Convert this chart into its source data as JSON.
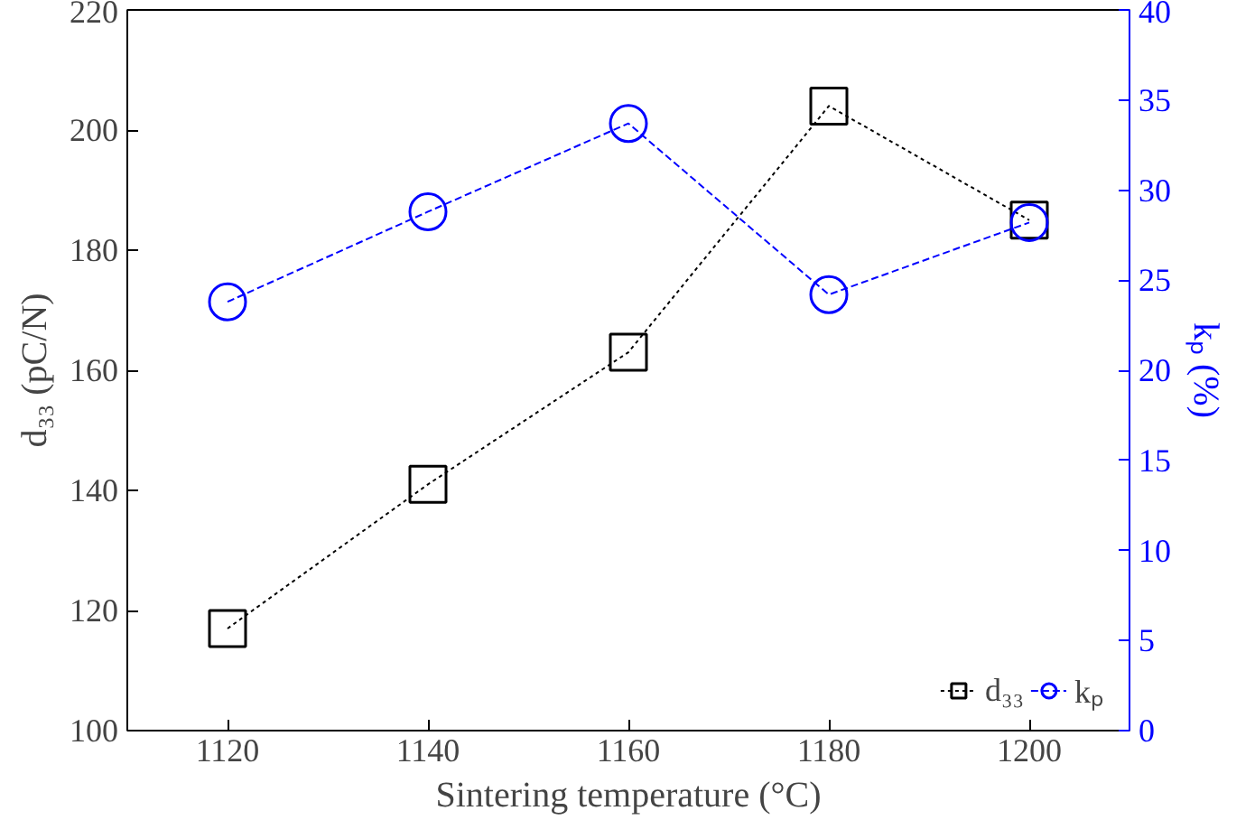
{
  "chart_data": {
    "type": "line",
    "xlabel": "Sintering temperature (°C)",
    "ylabel": "d₃₃ (pC/N)",
    "y2label": "kₚ (%)",
    "x": [
      1120,
      1140,
      1160,
      1180,
      1200
    ],
    "series": [
      {
        "name": "d₃₃",
        "color": "#000000",
        "values": [
          117,
          141,
          163,
          204,
          185
        ],
        "marker": "square",
        "line_style": "dotted"
      },
      {
        "name": "kₚ",
        "color": "#0000ff",
        "values": [
          23.8,
          28.8,
          33.7,
          24.2,
          28.2
        ],
        "marker": "circle",
        "line_style": "dashed",
        "axis": "y2"
      }
    ],
    "xlim": [
      1110,
      1210
    ],
    "xticks": [
      1120,
      1140,
      1160,
      1180,
      1200
    ],
    "ylim": [
      100,
      220
    ],
    "yticks": [
      100,
      120,
      140,
      160,
      180,
      200,
      220
    ],
    "y2lim": [
      0,
      40
    ],
    "y2ticks": [
      0,
      5,
      10,
      15,
      20,
      25,
      30,
      35,
      40
    ],
    "legend": "bottom right",
    "grid": false
  }
}
